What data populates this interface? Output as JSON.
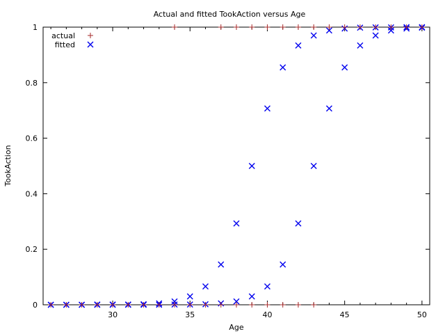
{
  "chart_data": {
    "type": "scatter",
    "title": "Actual and fitted TookAction versus Age",
    "xlabel": "Age",
    "ylabel": "TookAction",
    "xlim": [
      25.5,
      50.5
    ],
    "ylim": [
      0,
      1
    ],
    "x_ticks": [
      30,
      35,
      40,
      45,
      50
    ],
    "y_ticks": [
      0,
      0.2,
      0.4,
      0.6,
      0.8,
      1
    ],
    "x_tick_labels": [
      "30",
      "35",
      "40",
      "45",
      "50"
    ],
    "y_tick_labels": [
      "0",
      "0.2",
      "0.4",
      "0.6",
      "0.8",
      "1"
    ],
    "grid": false,
    "legend_position": "top-left",
    "series": [
      {
        "name": "actual",
        "marker": "plus",
        "color": "#a52a2a",
        "points": [
          [
            26,
            0
          ],
          [
            27,
            0
          ],
          [
            28,
            0
          ],
          [
            29,
            0
          ],
          [
            30,
            0
          ],
          [
            31,
            0
          ],
          [
            32,
            0
          ],
          [
            33,
            0
          ],
          [
            34,
            0
          ],
          [
            35,
            0
          ],
          [
            36,
            0
          ],
          [
            37,
            0
          ],
          [
            38,
            0
          ],
          [
            39,
            0
          ],
          [
            40,
            0
          ],
          [
            41,
            0
          ],
          [
            42,
            0
          ],
          [
            43,
            0
          ],
          [
            34,
            1
          ],
          [
            37,
            1
          ],
          [
            38,
            1
          ],
          [
            39,
            1
          ],
          [
            40,
            1
          ],
          [
            41,
            1
          ],
          [
            42,
            1
          ],
          [
            43,
            1
          ],
          [
            44,
            1
          ],
          [
            45,
            1
          ],
          [
            46,
            1
          ],
          [
            47,
            1
          ],
          [
            48,
            1
          ],
          [
            49,
            1
          ],
          [
            50,
            1
          ]
        ]
      },
      {
        "name": "fitted",
        "marker": "cross",
        "color": "#0000ee",
        "points": [
          [
            26,
            0.0
          ],
          [
            27,
            0.0
          ],
          [
            28,
            0.0
          ],
          [
            29,
            0.001
          ],
          [
            30,
            0.001
          ],
          [
            31,
            0.001
          ],
          [
            32,
            0.002
          ],
          [
            33,
            0.005
          ],
          [
            34,
            0.012
          ],
          [
            35,
            0.03
          ],
          [
            36,
            0.066
          ],
          [
            37,
            0.145
          ],
          [
            38,
            0.293
          ],
          [
            39,
            0.5
          ],
          [
            40,
            0.707
          ],
          [
            41,
            0.855
          ],
          [
            42,
            0.934
          ],
          [
            43,
            0.97
          ],
          [
            44,
            0.988
          ],
          [
            45,
            0.995
          ],
          [
            46,
            0.998
          ],
          [
            47,
            0.999
          ],
          [
            48,
            0.999
          ],
          [
            49,
            1.0
          ],
          [
            50,
            1.0
          ],
          [
            26,
            0.0
          ],
          [
            27,
            0.0
          ],
          [
            28,
            0.0
          ],
          [
            29,
            0.0
          ],
          [
            30,
            0.0
          ],
          [
            31,
            0.0
          ],
          [
            32,
            0.0
          ],
          [
            33,
            0.0
          ],
          [
            34,
            0.001
          ],
          [
            35,
            0.001
          ],
          [
            36,
            0.002
          ],
          [
            37,
            0.005
          ],
          [
            38,
            0.012
          ],
          [
            39,
            0.03
          ],
          [
            40,
            0.066
          ],
          [
            41,
            0.145
          ],
          [
            42,
            0.293
          ],
          [
            43,
            0.5
          ],
          [
            44,
            0.707
          ],
          [
            45,
            0.855
          ],
          [
            46,
            0.934
          ],
          [
            47,
            0.97
          ],
          [
            48,
            0.988
          ],
          [
            49,
            0.995
          ],
          [
            50,
            0.998
          ]
        ]
      }
    ]
  }
}
